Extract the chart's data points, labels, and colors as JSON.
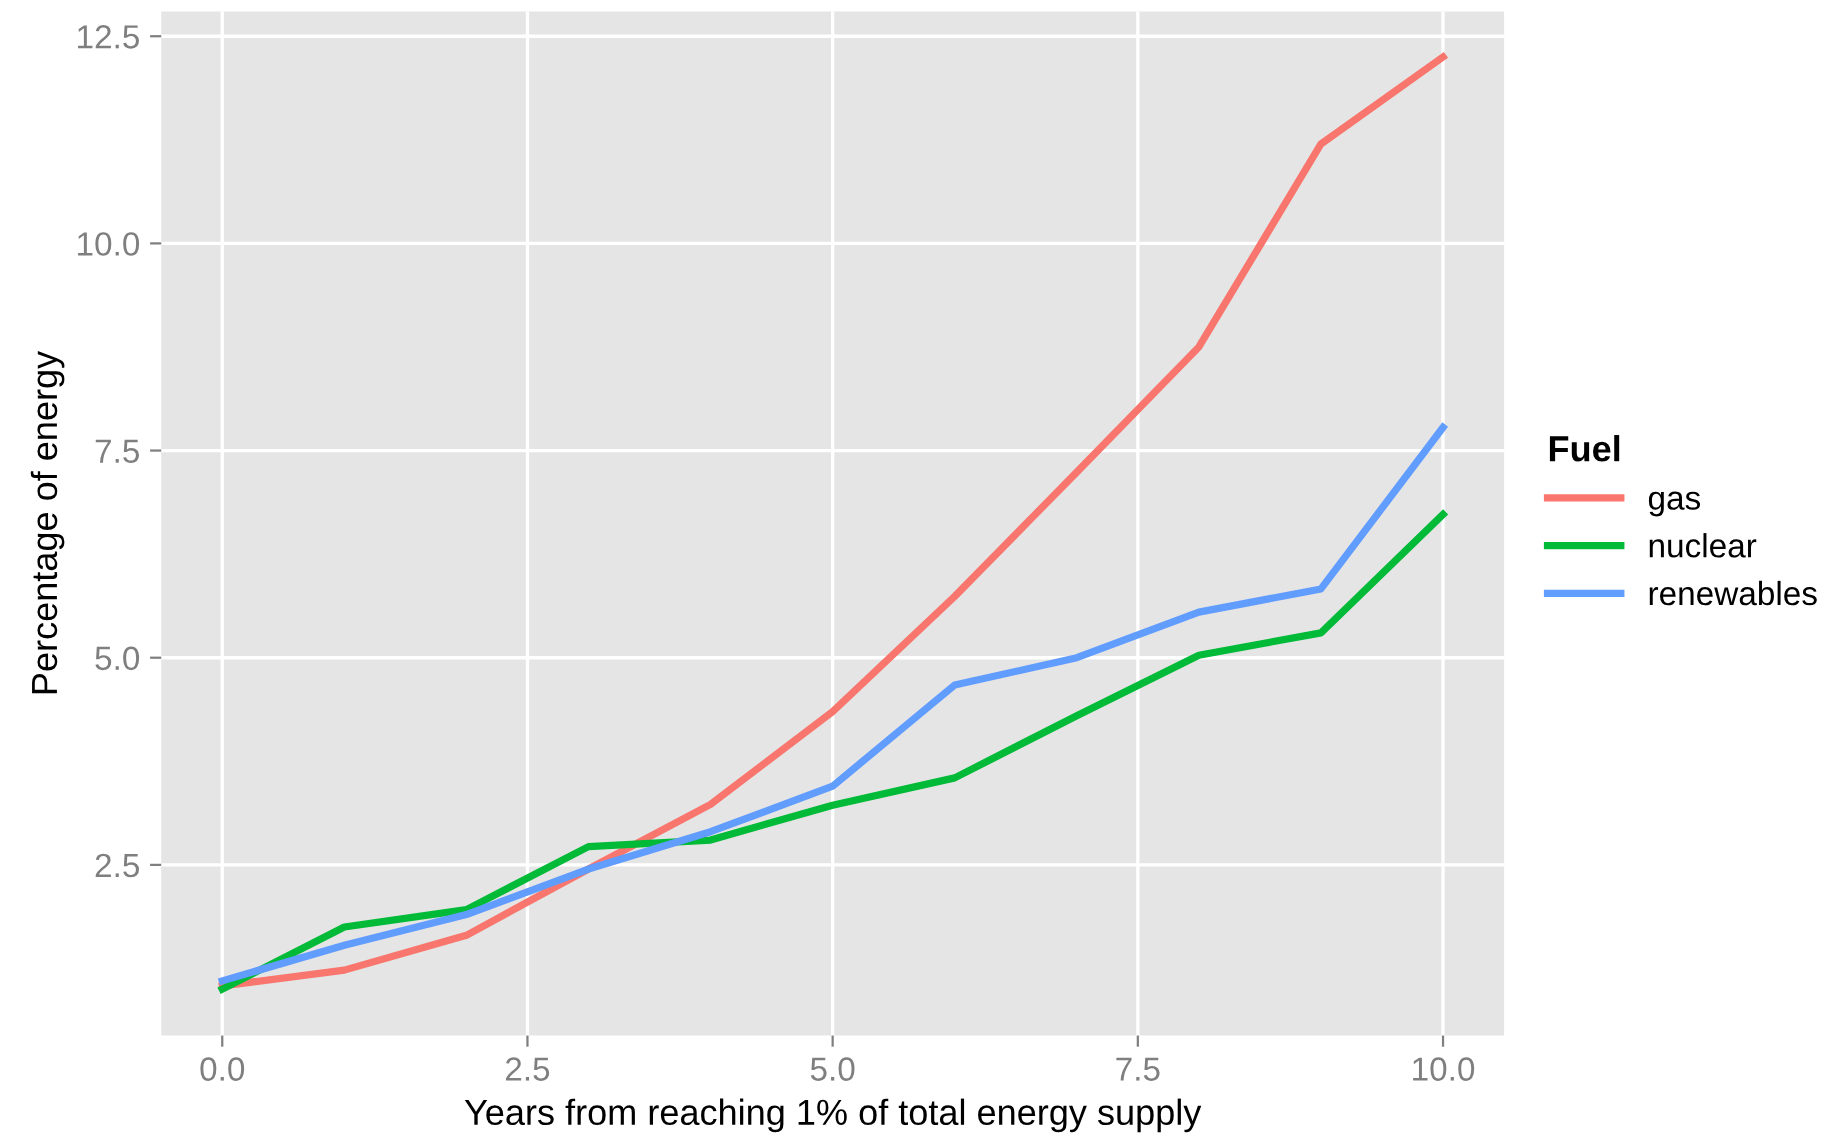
{
  "chart_data": {
    "type": "line",
    "xlabel": "Years from reaching 1% of total energy supply",
    "ylabel": "Percentage of energy",
    "legend_title": "Fuel",
    "x": [
      0,
      1,
      2,
      3,
      4,
      5,
      6,
      7,
      8,
      9,
      10
    ],
    "series": [
      {
        "name": "gas",
        "color": "#f8766d",
        "values": [
          1.04,
          1.23,
          1.65,
          2.45,
          3.23,
          4.35,
          5.74,
          7.24,
          8.75,
          11.2,
          12.25
        ]
      },
      {
        "name": "nuclear",
        "color": "#00ba38",
        "values": [
          1.0,
          1.75,
          1.96,
          2.72,
          2.8,
          3.22,
          3.55,
          4.3,
          5.03,
          5.3,
          6.73
        ]
      },
      {
        "name": "renewables",
        "color": "#619cff",
        "values": [
          1.1,
          1.53,
          1.9,
          2.45,
          2.9,
          3.45,
          4.67,
          5.0,
          5.55,
          5.83,
          7.78
        ]
      }
    ],
    "xlim": [
      -0.5,
      10.5
    ],
    "ylim": [
      0.44,
      12.8
    ],
    "xticks": [
      {
        "value": 0,
        "label": "0.0"
      },
      {
        "value": 2.5,
        "label": "2.5"
      },
      {
        "value": 5,
        "label": "5.0"
      },
      {
        "value": 7.5,
        "label": "7.5"
      },
      {
        "value": 10,
        "label": "10.0"
      }
    ],
    "yticks": [
      {
        "value": 2.5,
        "label": "2.5"
      },
      {
        "value": 5,
        "label": "5.0"
      },
      {
        "value": 7.5,
        "label": "7.5"
      },
      {
        "value": 10,
        "label": "10.0"
      },
      {
        "value": 12.5,
        "label": "12.5"
      }
    ],
    "grid": true,
    "legend": "right",
    "marker": "none",
    "line_style": "solid"
  }
}
